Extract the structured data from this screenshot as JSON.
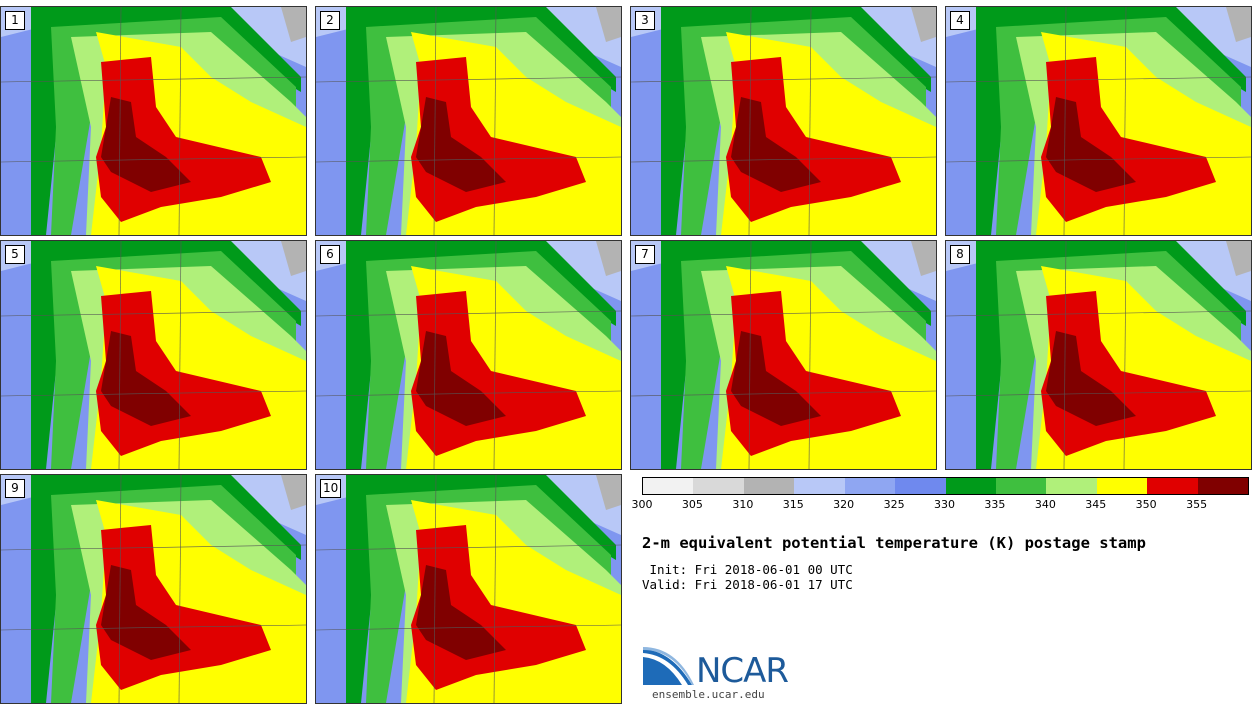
{
  "panels": [
    {
      "label": "1"
    },
    {
      "label": "2"
    },
    {
      "label": "3"
    },
    {
      "label": "4"
    },
    {
      "label": "5"
    },
    {
      "label": "6"
    },
    {
      "label": "7"
    },
    {
      "label": "8"
    },
    {
      "label": "9"
    },
    {
      "label": "10"
    }
  ],
  "colorbar": {
    "colors": [
      "#f2f2f2",
      "#d9d9d9",
      "#b3b3b3",
      "#b8c8f7",
      "#8fa6f2",
      "#6f89ee",
      "#009a1a",
      "#3fbf3f",
      "#b0f07a",
      "#ffff00",
      "#e00000",
      "#800000"
    ],
    "ticks": [
      "300",
      "305",
      "310",
      "315",
      "320",
      "325",
      "330",
      "335",
      "340",
      "345",
      "350",
      "355"
    ]
  },
  "title": "2-m equivalent potential temperature (K) postage stamp",
  "init_line": " Init: Fri 2018-06-01 00 UTC",
  "valid_line": "Valid: Fri 2018-06-01 17 UTC",
  "logo": {
    "text": "NCAR",
    "url": "ensemble.ucar.edu"
  }
}
